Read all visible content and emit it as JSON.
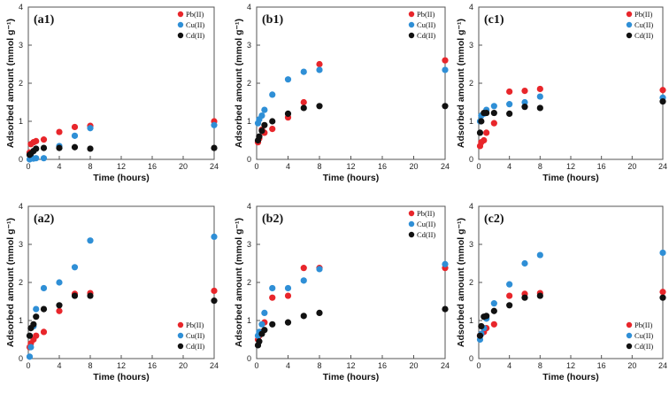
{
  "chart_data": [
    {
      "type": "scatter",
      "title": "(a1)",
      "xlabel": "Time (hours)",
      "ylabel": "Adsorbed amount (mmol g⁻¹)",
      "xlim": [
        0,
        24
      ],
      "ylim": [
        0,
        4
      ],
      "xticks": [
        "0",
        "4",
        "8",
        "12",
        "16",
        "20",
        "24"
      ],
      "yticks": [
        "0",
        "1",
        "2",
        "3",
        "4"
      ],
      "legend_position": "top-right",
      "series": [
        {
          "name": "Pb(II)",
          "color": "#e8262b",
          "x": [
            0.17,
            0.33,
            0.67,
            1,
            2,
            4,
            6,
            8,
            24
          ],
          "y": [
            0.18,
            0.4,
            0.45,
            0.48,
            0.52,
            0.72,
            0.85,
            0.88,
            1.0
          ]
        },
        {
          "name": "Cu(II)",
          "color": "#2f8fd6",
          "x": [
            0.17,
            0.33,
            0.67,
            1,
            2,
            4,
            6,
            8,
            24
          ],
          "y": [
            0.0,
            0.02,
            0.02,
            0.03,
            0.03,
            0.35,
            0.62,
            0.82,
            0.9
          ]
        },
        {
          "name": "Cd(II)",
          "color": "#111111",
          "x": [
            0.17,
            0.33,
            0.67,
            1,
            2,
            4,
            6,
            8,
            24
          ],
          "y": [
            0.12,
            0.15,
            0.22,
            0.28,
            0.3,
            0.3,
            0.32,
            0.28,
            0.3
          ]
        }
      ]
    },
    {
      "type": "scatter",
      "title": "(b1)",
      "xlabel": "Time (hours)",
      "ylabel": "Adsorbed amount (mmol g⁻¹)",
      "xlim": [
        0,
        24
      ],
      "ylim": [
        0,
        4
      ],
      "xticks": [
        "0",
        "4",
        "8",
        "12",
        "16",
        "20",
        "24"
      ],
      "yticks": [
        "0",
        "1",
        "2",
        "3",
        "4"
      ],
      "legend_position": "top-right",
      "series": [
        {
          "name": "Pb(II)",
          "color": "#e8262b",
          "x": [
            0.17,
            0.33,
            0.67,
            1,
            2,
            4,
            6,
            8,
            24
          ],
          "y": [
            0.45,
            0.55,
            0.78,
            0.7,
            0.8,
            1.1,
            1.5,
            2.5,
            2.6
          ]
        },
        {
          "name": "Cu(II)",
          "color": "#2f8fd6",
          "x": [
            0.17,
            0.33,
            0.67,
            1,
            2,
            4,
            6,
            8,
            24
          ],
          "y": [
            0.95,
            1.05,
            1.15,
            1.3,
            1.7,
            2.1,
            2.3,
            2.35,
            2.35
          ]
        },
        {
          "name": "Cd(II)",
          "color": "#111111",
          "x": [
            0.17,
            0.33,
            0.67,
            1,
            2,
            4,
            6,
            8,
            24
          ],
          "y": [
            0.5,
            0.6,
            0.75,
            0.9,
            1.0,
            1.2,
            1.35,
            1.4,
            1.4
          ]
        }
      ]
    },
    {
      "type": "scatter",
      "title": "(c1)",
      "xlabel": "Time (hours)",
      "ylabel": "Adsorbed amount (mmol g⁻¹)",
      "xlim": [
        0,
        24
      ],
      "ylim": [
        0,
        4
      ],
      "xticks": [
        "0",
        "4",
        "8",
        "12",
        "16",
        "20",
        "24"
      ],
      "yticks": [
        "0",
        "1",
        "2",
        "3",
        "4"
      ],
      "legend_position": "top-right",
      "series": [
        {
          "name": "Pb(II)",
          "color": "#e8262b",
          "x": [
            0.17,
            0.33,
            0.67,
            1,
            2,
            4,
            6,
            8,
            24
          ],
          "y": [
            0.35,
            0.45,
            0.5,
            0.7,
            0.95,
            1.78,
            1.8,
            1.85,
            1.82
          ]
        },
        {
          "name": "Cu(II)",
          "color": "#2f8fd6",
          "x": [
            0.17,
            0.33,
            0.67,
            1,
            2,
            4,
            6,
            8,
            24
          ],
          "y": [
            1.0,
            1.15,
            1.2,
            1.3,
            1.4,
            1.45,
            1.5,
            1.65,
            1.62
          ]
        },
        {
          "name": "Cd(II)",
          "color": "#111111",
          "x": [
            0.17,
            0.33,
            0.67,
            1,
            2,
            4,
            6,
            8,
            24
          ],
          "y": [
            0.7,
            1.0,
            1.22,
            1.22,
            1.22,
            1.2,
            1.38,
            1.35,
            1.52
          ]
        }
      ]
    },
    {
      "type": "scatter",
      "title": "(a2)",
      "xlabel": "Time (hours)",
      "ylabel": "Adsorbed amount (mmol g⁻¹)",
      "xlim": [
        0,
        24
      ],
      "ylim": [
        0,
        4
      ],
      "xticks": [
        "0",
        "4",
        "8",
        "12",
        "16",
        "20",
        "24"
      ],
      "yticks": [
        "0",
        "1",
        "2",
        "3",
        "4"
      ],
      "legend_position": "bottom-right",
      "series": [
        {
          "name": "Pb(II)",
          "color": "#e8262b",
          "x": [
            0.17,
            0.33,
            0.67,
            1,
            2,
            4,
            6,
            8,
            24
          ],
          "y": [
            0.3,
            0.4,
            0.5,
            0.6,
            0.7,
            1.25,
            1.7,
            1.72,
            1.78
          ]
        },
        {
          "name": "Cu(II)",
          "color": "#2f8fd6",
          "x": [
            0.17,
            0.33,
            0.67,
            1,
            2,
            4,
            6,
            8,
            24
          ],
          "y": [
            0.05,
            0.3,
            0.85,
            1.3,
            1.85,
            2.0,
            2.4,
            3.1,
            3.2
          ]
        },
        {
          "name": "Cd(II)",
          "color": "#111111",
          "x": [
            0.17,
            0.33,
            0.67,
            1,
            2,
            4,
            6,
            8,
            24
          ],
          "y": [
            0.6,
            0.8,
            0.9,
            1.1,
            1.3,
            1.4,
            1.65,
            1.65,
            1.52
          ]
        }
      ]
    },
    {
      "type": "scatter",
      "title": "(b2)",
      "xlabel": "Time (hours)",
      "ylabel": "Adsorbed amount (mmol g⁻¹)",
      "xlim": [
        0,
        24
      ],
      "ylim": [
        0,
        4
      ],
      "xticks": [
        "0",
        "4",
        "8",
        "12",
        "16",
        "20",
        "24"
      ],
      "yticks": [
        "0",
        "1",
        "2",
        "3",
        "4"
      ],
      "legend_position": "top-right",
      "series": [
        {
          "name": "Pb(II)",
          "color": "#e8262b",
          "x": [
            0.17,
            0.33,
            0.67,
            1,
            2,
            4,
            6,
            8,
            24
          ],
          "y": [
            0.5,
            0.6,
            0.7,
            0.95,
            1.6,
            1.65,
            2.38,
            2.38,
            2.38
          ]
        },
        {
          "name": "Cu(II)",
          "color": "#2f8fd6",
          "x": [
            0.17,
            0.33,
            0.67,
            1,
            2,
            4,
            6,
            8,
            24
          ],
          "y": [
            0.6,
            0.7,
            0.9,
            1.2,
            1.85,
            1.85,
            2.05,
            2.35,
            2.48
          ]
        },
        {
          "name": "Cd(II)",
          "color": "#111111",
          "x": [
            0.17,
            0.33,
            0.67,
            1,
            2,
            4,
            6,
            8,
            24
          ],
          "y": [
            0.35,
            0.45,
            0.65,
            0.75,
            0.9,
            0.95,
            1.12,
            1.2,
            1.3
          ]
        }
      ]
    },
    {
      "type": "scatter",
      "title": "(c2)",
      "xlabel": "Time (hours)",
      "ylabel": "Adsorbed amount (mmol g⁻¹)",
      "xlim": [
        0,
        24
      ],
      "ylim": [
        0,
        4
      ],
      "xticks": [
        "0",
        "4",
        "8",
        "12",
        "16",
        "20",
        "24"
      ],
      "yticks": [
        "0",
        "1",
        "2",
        "3",
        "4"
      ],
      "legend_position": "bottom-right",
      "series": [
        {
          "name": "Pb(II)",
          "color": "#e8262b",
          "x": [
            0.17,
            0.33,
            0.67,
            1,
            2,
            4,
            6,
            8,
            24
          ],
          "y": [
            0.6,
            0.65,
            0.7,
            0.8,
            0.9,
            1.65,
            1.7,
            1.72,
            1.75
          ]
        },
        {
          "name": "Cu(II)",
          "color": "#2f8fd6",
          "x": [
            0.17,
            0.33,
            0.67,
            1,
            2,
            4,
            6,
            8,
            24
          ],
          "y": [
            0.5,
            0.65,
            0.8,
            1.05,
            1.45,
            1.95,
            2.5,
            2.72,
            2.78
          ]
        },
        {
          "name": "Cd(II)",
          "color": "#111111",
          "x": [
            0.17,
            0.33,
            0.67,
            1,
            2,
            4,
            6,
            8,
            24
          ],
          "y": [
            0.6,
            0.85,
            1.1,
            1.12,
            1.25,
            1.4,
            1.6,
            1.65,
            1.6
          ]
        }
      ]
    }
  ]
}
